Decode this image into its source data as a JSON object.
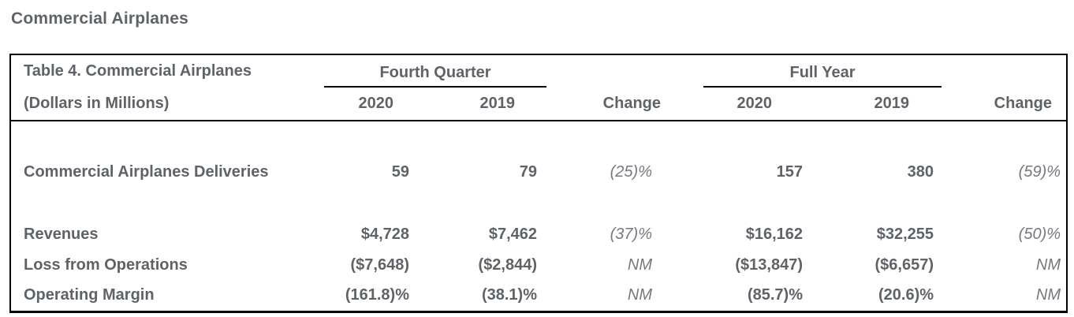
{
  "page_title": "Commercial Airplanes",
  "table": {
    "header": {
      "title": "Table 4. Commercial Airplanes",
      "subtitle": "(Dollars in Millions)",
      "groups": [
        {
          "label": "Fourth Quarter"
        },
        {
          "label": "Full Year"
        }
      ],
      "columns": [
        "2020",
        "2019",
        "Change",
        "2020",
        "2019",
        "Change"
      ]
    },
    "rows": [
      {
        "label": "Commercial Airplanes Deliveries",
        "q4_2020": "59",
        "q4_2019": "79",
        "q4_change": "(25)%",
        "fy_2020": "157",
        "fy_2019": "380",
        "fy_change": "(59)%"
      },
      {
        "label": "Revenues",
        "q4_2020": "$4,728",
        "q4_2019": "$7,462",
        "q4_change": "(37)%",
        "fy_2020": "$16,162",
        "fy_2019": "$32,255",
        "fy_change": "(50)%"
      },
      {
        "label": "Loss from Operations",
        "q4_2020": "($7,648)",
        "q4_2019": "($2,844)",
        "q4_change": "NM",
        "fy_2020": "($13,847)",
        "fy_2019": "($6,657)",
        "fy_change": "NM"
      },
      {
        "label": "Operating Margin",
        "q4_2020": "(161.8)%",
        "q4_2019": "(38.1)%",
        "q4_change": "NM",
        "fy_2020": "(85.7)%",
        "fy_2019": "(20.6)%",
        "fy_change": "NM"
      }
    ],
    "colors": {
      "text": "#5f6368",
      "change_text": "#75797e",
      "border": "#000000",
      "background": "#ffffff"
    }
  }
}
